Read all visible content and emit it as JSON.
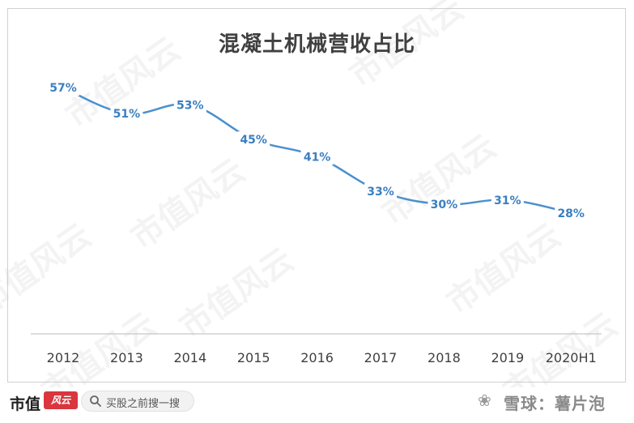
{
  "chart_data": {
    "type": "line",
    "title": "混凝土机械营收占比",
    "categories": [
      "2012",
      "2013",
      "2014",
      "2015",
      "2016",
      "2017",
      "2018",
      "2019",
      "2020H1"
    ],
    "series": [
      {
        "values": [
          57,
          51,
          53,
          45,
          41,
          33,
          30,
          31,
          28
        ]
      }
    ],
    "data_labels": [
      "57%",
      "51%",
      "53%",
      "45%",
      "41%",
      "33%",
      "30%",
      "31%",
      "28%"
    ],
    "ylim": [
      0,
      65
    ],
    "grid": false,
    "line_color": "#4a90cf",
    "label_color": "#3a7fc0"
  },
  "watermark_text": "市值风云",
  "footer": {
    "brand": "市值",
    "brand_logo": "风云",
    "search_placeholder": "买股之前搜一搜",
    "xueqiu_text": "雪球：薯片泡"
  }
}
